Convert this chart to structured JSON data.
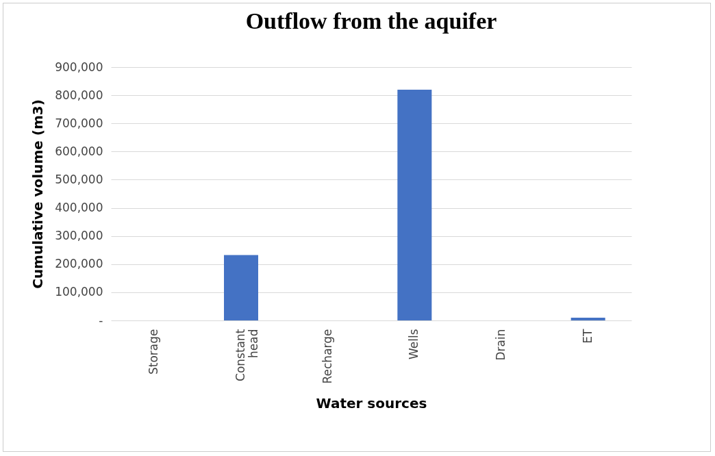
{
  "chart_data": {
    "type": "bar",
    "title": "Outflow from the aquifer",
    "xlabel": "Water sources",
    "ylabel": "Cumulative volume (m3)",
    "categories": [
      "Storage",
      "Constant head",
      "Recharge",
      "Wells",
      "Drain",
      "ET"
    ],
    "values": [
      0,
      232000,
      0,
      820000,
      0,
      10000
    ],
    "color": "#4472c4",
    "ylim": [
      0,
      900000
    ],
    "yticks": [
      {
        "value": 0,
        "label": "-"
      },
      {
        "value": 100000,
        "label": "100,000"
      },
      {
        "value": 200000,
        "label": "200,000"
      },
      {
        "value": 300000,
        "label": "300,000"
      },
      {
        "value": 400000,
        "label": "400,000"
      },
      {
        "value": 500000,
        "label": "500,000"
      },
      {
        "value": 600000,
        "label": "600,000"
      },
      {
        "value": 700000,
        "label": "700,000"
      },
      {
        "value": 800000,
        "label": "800,000"
      },
      {
        "value": 900000,
        "label": "900,000"
      }
    ],
    "grid": "y"
  }
}
